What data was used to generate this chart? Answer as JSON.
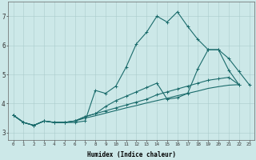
{
  "xlabel": "Humidex (Indice chaleur)",
  "bg_color": "#cce8e8",
  "line_color": "#1a6b6b",
  "grid_color": "#aacccc",
  "xlim": [
    -0.5,
    23.5
  ],
  "ylim": [
    2.75,
    7.5
  ],
  "xticks": [
    0,
    1,
    2,
    3,
    4,
    5,
    6,
    7,
    8,
    9,
    10,
    11,
    12,
    13,
    14,
    15,
    16,
    17,
    18,
    19,
    20,
    21,
    22,
    23
  ],
  "yticks": [
    3,
    4,
    5,
    6,
    7
  ],
  "line1_y": [
    3.6,
    3.35,
    3.25,
    3.4,
    3.35,
    3.35,
    3.35,
    3.4,
    4.45,
    4.35,
    4.6,
    5.25,
    6.05,
    6.45,
    7.0,
    6.8,
    7.15,
    6.65,
    6.2,
    5.85,
    5.85,
    5.55,
    5.1,
    4.65
  ],
  "line2_y": [
    3.6,
    3.35,
    3.25,
    3.4,
    3.35,
    3.35,
    3.4,
    3.55,
    3.65,
    3.9,
    4.1,
    4.25,
    4.4,
    4.55,
    4.7,
    4.15,
    4.2,
    4.35,
    5.2,
    5.85,
    5.85,
    5.15,
    4.65,
    null
  ],
  "line3_y": [
    3.6,
    3.35,
    3.25,
    3.4,
    3.35,
    3.35,
    3.4,
    3.55,
    3.65,
    3.75,
    3.85,
    3.95,
    4.05,
    4.15,
    4.3,
    4.4,
    4.5,
    4.6,
    4.7,
    4.8,
    4.85,
    4.9,
    4.65,
    null
  ],
  "line4_y": [
    3.6,
    3.35,
    3.25,
    3.4,
    3.35,
    3.35,
    3.4,
    3.5,
    3.58,
    3.67,
    3.76,
    3.85,
    3.93,
    4.02,
    4.1,
    4.18,
    4.27,
    4.35,
    4.43,
    4.52,
    4.58,
    4.63,
    4.65,
    null
  ]
}
